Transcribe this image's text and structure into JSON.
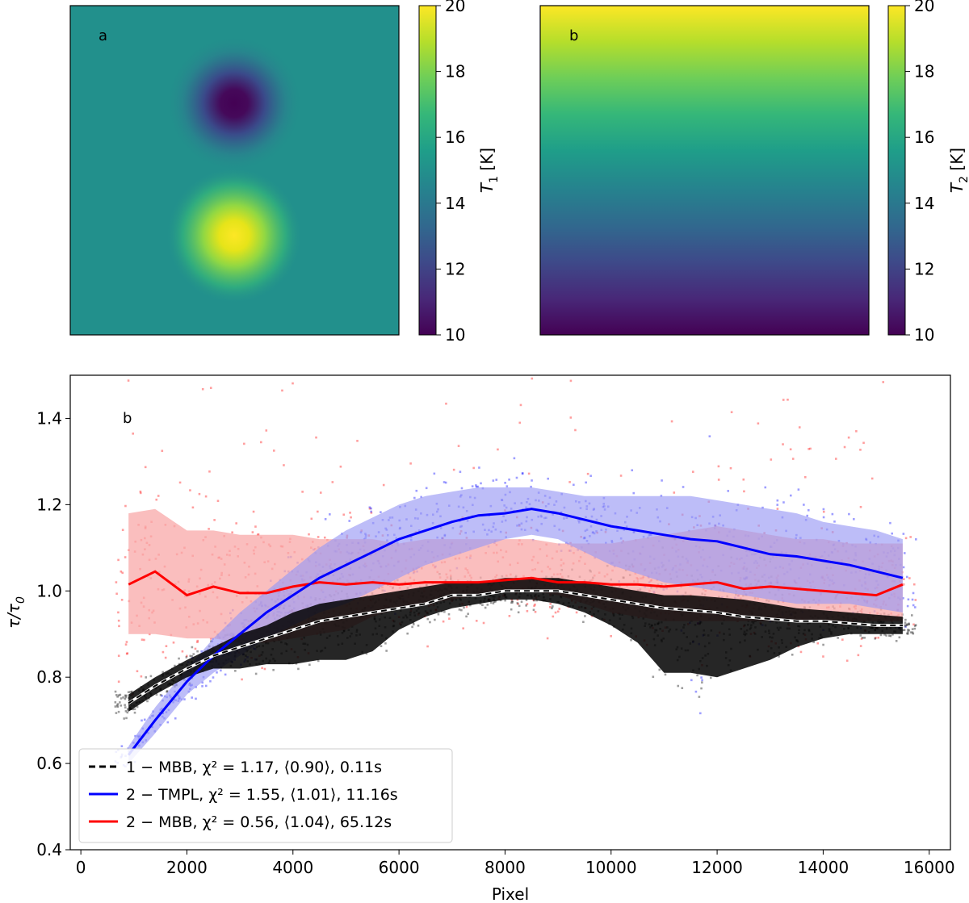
{
  "colors": {
    "viridis": [
      "#440154",
      "#482878",
      "#3e4989",
      "#31688e",
      "#26828e",
      "#1f9e89",
      "#35b779",
      "#6ece58",
      "#b5de2b",
      "#fde725"
    ],
    "black_series": "#000000",
    "blue_series": "#0000ff",
    "red_series": "#ff0000",
    "blue_band": "#9a9af5",
    "red_band": "#f8a8a8"
  },
  "chart_data": [
    {
      "type": "heatmap",
      "panel_label": "a",
      "description_values": {
        "background_K": 15,
        "cold_blob_K": 10,
        "warm_blob_K": 20
      },
      "colorbar": {
        "label_main": "T",
        "label_sub": "1",
        "label_unit": " [K]",
        "range": [
          10,
          20
        ],
        "ticks": [
          "10",
          "12",
          "14",
          "16",
          "18",
          "20"
        ]
      }
    },
    {
      "type": "heatmap",
      "panel_label": "b",
      "description_values": {
        "top_K": 20,
        "bottom_K": 10,
        "gradient": "vertical"
      },
      "colorbar": {
        "label_main": "T",
        "label_sub": "2",
        "label_unit": " [K]",
        "range": [
          10,
          20
        ],
        "ticks": [
          "10",
          "12",
          "14",
          "16",
          "18",
          "20"
        ]
      }
    },
    {
      "type": "line",
      "panel_label": "b",
      "xlabel": "Pixel",
      "ylabel_main": "τ/τ",
      "ylabel_sub": "0",
      "xlim": [
        -200,
        16400
      ],
      "ylim": [
        0.4,
        1.5
      ],
      "xticks": [
        0,
        2000,
        4000,
        6000,
        8000,
        10000,
        12000,
        14000,
        16000
      ],
      "xtick_labels": [
        "0",
        "2000",
        "4000",
        "6000",
        "8000",
        "10000",
        "12000",
        "14000",
        "16000"
      ],
      "yticks": [
        0.4,
        0.6,
        0.8,
        1.0,
        1.2,
        1.4
      ],
      "ytick_labels": [
        "0.4",
        "0.6",
        "0.8",
        "1.0",
        "1.2",
        "1.4"
      ],
      "series": [
        {
          "name": "1-MBB",
          "legend_label": "1 − MBB,  χ² = 1.17, ⟨0.90⟩,  0.11s",
          "style": "dashed",
          "x": [
            900,
            1400,
            2000,
            2500,
            3000,
            3500,
            4000,
            4500,
            5000,
            5500,
            6000,
            6500,
            7000,
            7500,
            8000,
            8500,
            9000,
            9500,
            10000,
            10500,
            11000,
            11500,
            12000,
            12500,
            13000,
            13500,
            14000,
            14500,
            15000,
            15500
          ],
          "mean": [
            0.74,
            0.78,
            0.82,
            0.85,
            0.87,
            0.89,
            0.91,
            0.93,
            0.94,
            0.95,
            0.96,
            0.97,
            0.99,
            0.99,
            1.0,
            1.0,
            1.0,
            0.99,
            0.98,
            0.97,
            0.96,
            0.955,
            0.95,
            0.94,
            0.935,
            0.93,
            0.93,
            0.925,
            0.92,
            0.92
          ],
          "lower": [
            0.72,
            0.76,
            0.8,
            0.82,
            0.82,
            0.83,
            0.83,
            0.84,
            0.84,
            0.86,
            0.91,
            0.94,
            0.96,
            0.97,
            0.98,
            0.98,
            0.97,
            0.95,
            0.92,
            0.88,
            0.81,
            0.81,
            0.8,
            0.82,
            0.84,
            0.87,
            0.89,
            0.9,
            0.9,
            0.9
          ],
          "upper": [
            0.76,
            0.8,
            0.84,
            0.87,
            0.9,
            0.92,
            0.95,
            0.97,
            0.98,
            0.99,
            1.0,
            1.01,
            1.02,
            1.02,
            1.03,
            1.03,
            1.03,
            1.02,
            1.01,
            1.0,
            0.99,
            0.99,
            0.985,
            0.98,
            0.97,
            0.96,
            0.955,
            0.95,
            0.945,
            0.94
          ]
        },
        {
          "name": "2-TMPL",
          "legend_label": "2 − TMPL,  χ² = 1.55, ⟨1.01⟩,  11.16s",
          "style": "solid",
          "x": [
            900,
            1400,
            2000,
            2500,
            3000,
            3500,
            4000,
            4500,
            5000,
            5500,
            6000,
            6500,
            7000,
            7500,
            8000,
            8500,
            9000,
            9500,
            10000,
            10500,
            11000,
            11500,
            12000,
            12500,
            13000,
            13500,
            14000,
            14500,
            15000,
            15500
          ],
          "mean": [
            0.62,
            0.7,
            0.79,
            0.85,
            0.9,
            0.95,
            0.99,
            1.03,
            1.06,
            1.09,
            1.12,
            1.14,
            1.16,
            1.175,
            1.18,
            1.19,
            1.18,
            1.165,
            1.15,
            1.14,
            1.13,
            1.12,
            1.115,
            1.1,
            1.085,
            1.08,
            1.07,
            1.06,
            1.045,
            1.03
          ],
          "lower": [
            0.6,
            0.67,
            0.76,
            0.81,
            0.85,
            0.89,
            0.92,
            0.95,
            0.97,
            1.0,
            1.03,
            1.06,
            1.08,
            1.1,
            1.12,
            1.13,
            1.12,
            1.09,
            1.06,
            1.04,
            1.02,
            1.01,
            1.0,
            0.99,
            0.98,
            0.97,
            0.97,
            0.97,
            0.96,
            0.95
          ],
          "upper": [
            0.64,
            0.73,
            0.82,
            0.89,
            0.95,
            1.0,
            1.05,
            1.1,
            1.14,
            1.17,
            1.2,
            1.22,
            1.23,
            1.24,
            1.24,
            1.24,
            1.23,
            1.22,
            1.22,
            1.22,
            1.22,
            1.22,
            1.21,
            1.2,
            1.19,
            1.18,
            1.16,
            1.15,
            1.14,
            1.12
          ]
        },
        {
          "name": "2-MBB",
          "legend_label": "2 − MBB,  χ² = 0.56, ⟨1.04⟩,  65.12s",
          "style": "solid",
          "x": [
            900,
            1400,
            2000,
            2500,
            3000,
            3500,
            4000,
            4500,
            5000,
            5500,
            6000,
            6500,
            7000,
            7500,
            8000,
            8500,
            9000,
            9500,
            10000,
            10500,
            11000,
            11500,
            12000,
            12500,
            13000,
            13500,
            14000,
            14500,
            15000,
            15500
          ],
          "mean": [
            1.015,
            1.045,
            0.99,
            1.01,
            0.995,
            0.995,
            1.01,
            1.02,
            1.015,
            1.02,
            1.015,
            1.02,
            1.02,
            1.02,
            1.025,
            1.03,
            1.02,
            1.02,
            1.015,
            1.015,
            1.01,
            1.015,
            1.02,
            1.005,
            1.01,
            1.005,
            1.0,
            0.995,
            0.99,
            1.015
          ],
          "lower": [
            0.9,
            0.9,
            0.89,
            0.89,
            0.88,
            0.88,
            0.89,
            0.9,
            0.91,
            0.94,
            0.96,
            0.97,
            0.98,
            0.99,
            1.0,
            1.0,
            0.99,
            0.97,
            0.95,
            0.94,
            0.93,
            0.93,
            0.93,
            0.93,
            0.93,
            0.93,
            0.93,
            0.93,
            0.93,
            0.93
          ],
          "upper": [
            1.18,
            1.19,
            1.14,
            1.14,
            1.13,
            1.13,
            1.13,
            1.12,
            1.12,
            1.12,
            1.11,
            1.12,
            1.12,
            1.12,
            1.12,
            1.12,
            1.11,
            1.11,
            1.11,
            1.12,
            1.13,
            1.14,
            1.15,
            1.14,
            1.13,
            1.12,
            1.12,
            1.11,
            1.11,
            1.11
          ]
        }
      ]
    }
  ]
}
